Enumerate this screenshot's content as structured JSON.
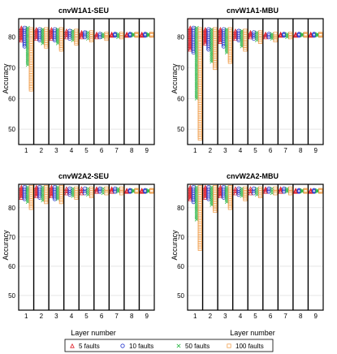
{
  "chart_data": [
    {
      "type": "scatter",
      "title": "cnvW1A1-SEU",
      "ylabel": "Accuracy",
      "xlabel": "",
      "ylim": [
        45,
        86
      ],
      "yticks": [
        50,
        60,
        70,
        80
      ],
      "categories": [
        "1",
        "2",
        "3",
        "4",
        "5",
        "6",
        "7",
        "8",
        "9"
      ],
      "series": [
        {
          "name": "5 faults",
          "ranges": [
            [
              79,
              83
            ],
            [
              79.5,
              82.5
            ],
            [
              79.5,
              82.5
            ],
            [
              80,
              82
            ],
            [
              80,
              81.5
            ],
            [
              80,
              81
            ],
            [
              80.5,
              81
            ],
            [
              80.5,
              81
            ],
            [
              80.5,
              81
            ]
          ]
        },
        {
          "name": "10 faults",
          "ranges": [
            [
              77,
              83
            ],
            [
              79,
              82.5
            ],
            [
              79,
              82.5
            ],
            [
              79.5,
              82
            ],
            [
              80,
              81.5
            ],
            [
              80,
              81
            ],
            [
              80.5,
              81
            ],
            [
              80.5,
              81
            ],
            [
              80.5,
              81
            ]
          ]
        },
        {
          "name": "50 faults",
          "ranges": [
            [
              71,
              83
            ],
            [
              78,
              82.5
            ],
            [
              78,
              82.5
            ],
            [
              79,
              82
            ],
            [
              79.5,
              81.5
            ],
            [
              80,
              81
            ],
            [
              80,
              81
            ],
            [
              80.5,
              81
            ],
            [
              80.5,
              81
            ]
          ]
        },
        {
          "name": "100 faults",
          "ranges": [
            [
              63,
              82.5
            ],
            [
              77,
              82.5
            ],
            [
              76,
              82.5
            ],
            [
              78,
              82
            ],
            [
              79,
              81.5
            ],
            [
              79.5,
              81
            ],
            [
              80,
              81
            ],
            [
              80.5,
              81
            ],
            [
              80.5,
              81
            ]
          ]
        }
      ]
    },
    {
      "type": "scatter",
      "title": "cnvW1A1-MBU",
      "ylabel": "Accuracy",
      "xlabel": "",
      "ylim": [
        45,
        86
      ],
      "yticks": [
        50,
        60,
        70,
        80
      ],
      "categories": [
        "1",
        "2",
        "3",
        "4",
        "5",
        "6",
        "7",
        "8",
        "9"
      ],
      "series": [
        {
          "name": "5 faults",
          "ranges": [
            [
              76,
              83
            ],
            [
              78,
              82.5
            ],
            [
              78.5,
              82.5
            ],
            [
              79.5,
              82
            ],
            [
              80,
              81.5
            ],
            [
              80,
              81
            ],
            [
              80.5,
              81
            ],
            [
              80.5,
              81
            ],
            [
              80.5,
              81
            ]
          ]
        },
        {
          "name": "10 faults",
          "ranges": [
            [
              75,
              83
            ],
            [
              76,
              82.5
            ],
            [
              77,
              82.5
            ],
            [
              79,
              82
            ],
            [
              79.5,
              81.5
            ],
            [
              80,
              81
            ],
            [
              80.5,
              81
            ],
            [
              80.5,
              81
            ],
            [
              80.5,
              81
            ]
          ]
        },
        {
          "name": "50 faults",
          "ranges": [
            [
              60,
              83
            ],
            [
              72,
              82.5
            ],
            [
              75,
              82.5
            ],
            [
              77,
              82
            ],
            [
              79,
              81.5
            ],
            [
              79.5,
              81
            ],
            [
              80,
              81
            ],
            [
              80.5,
              81
            ],
            [
              80.5,
              81
            ]
          ]
        },
        {
          "name": "100 faults",
          "ranges": [
            [
              47,
              82.5
            ],
            [
              70,
              82.5
            ],
            [
              72,
              82.5
            ],
            [
              76,
              82
            ],
            [
              78.5,
              81.5
            ],
            [
              79,
              81
            ],
            [
              80,
              81
            ],
            [
              80.5,
              81
            ],
            [
              80.5,
              81
            ]
          ]
        }
      ]
    },
    {
      "type": "scatter",
      "title": "cnvW2A2-SEU",
      "ylabel": "Accuracy",
      "xlabel": "Layer number",
      "ylim": [
        45,
        88
      ],
      "yticks": [
        50,
        60,
        70,
        80
      ],
      "categories": [
        "1",
        "2",
        "3",
        "4",
        "5",
        "6",
        "7",
        "8",
        "9"
      ],
      "series": [
        {
          "name": "5 faults",
          "ranges": [
            [
              83.5,
              87
            ],
            [
              84,
              87
            ],
            [
              84,
              87
            ],
            [
              85,
              86.5
            ],
            [
              85,
              86.5
            ],
            [
              85.5,
              86.5
            ],
            [
              85.5,
              86.5
            ],
            [
              85.5,
              86
            ],
            [
              85.5,
              86
            ]
          ]
        },
        {
          "name": "10 faults",
          "ranges": [
            [
              83,
              87
            ],
            [
              83.5,
              87
            ],
            [
              83,
              87
            ],
            [
              84.5,
              86.5
            ],
            [
              85,
              86.5
            ],
            [
              85.5,
              86.5
            ],
            [
              85.5,
              86.5
            ],
            [
              85.5,
              86
            ],
            [
              85.5,
              86
            ]
          ]
        },
        {
          "name": "50 faults",
          "ranges": [
            [
              82,
              87
            ],
            [
              82.5,
              87
            ],
            [
              83,
              87
            ],
            [
              84,
              86.5
            ],
            [
              84.5,
              86.5
            ],
            [
              85,
              86.5
            ],
            [
              85.5,
              86.5
            ],
            [
              85.5,
              86
            ],
            [
              85.5,
              86
            ]
          ]
        },
        {
          "name": "100 faults",
          "ranges": [
            [
              80,
              87
            ],
            [
              82,
              87
            ],
            [
              82,
              87
            ],
            [
              83.5,
              86.5
            ],
            [
              84,
              86.5
            ],
            [
              85,
              86.5
            ],
            [
              85,
              86.5
            ],
            [
              85.5,
              86
            ],
            [
              85.5,
              86
            ]
          ]
        }
      ]
    },
    {
      "type": "scatter",
      "title": "cnvW2A2-MBU",
      "ylabel": "Accuracy",
      "xlabel": "Layer number",
      "ylim": [
        45,
        88
      ],
      "yticks": [
        50,
        60,
        70,
        80
      ],
      "categories": [
        "1",
        "2",
        "3",
        "4",
        "5",
        "6",
        "7",
        "8",
        "9"
      ],
      "series": [
        {
          "name": "5 faults",
          "ranges": [
            [
              83,
              87
            ],
            [
              83.5,
              87
            ],
            [
              84,
              87
            ],
            [
              85,
              86.5
            ],
            [
              85,
              86.5
            ],
            [
              85.5,
              86.5
            ],
            [
              85.5,
              86.5
            ],
            [
              85.5,
              86
            ],
            [
              85.5,
              86
            ]
          ]
        },
        {
          "name": "10 faults",
          "ranges": [
            [
              82,
              87
            ],
            [
              83,
              87
            ],
            [
              83.5,
              87
            ],
            [
              84.5,
              86.5
            ],
            [
              85,
              86.5
            ],
            [
              85.5,
              86.5
            ],
            [
              85.5,
              86.5
            ],
            [
              85.5,
              86
            ],
            [
              85.5,
              86
            ]
          ]
        },
        {
          "name": "50 faults",
          "ranges": [
            [
              76,
              87
            ],
            [
              81,
              87
            ],
            [
              82,
              87
            ],
            [
              84,
              86.5
            ],
            [
              84.5,
              86.5
            ],
            [
              85,
              86.5
            ],
            [
              85.5,
              86.5
            ],
            [
              85.5,
              86
            ],
            [
              85.5,
              86
            ]
          ]
        },
        {
          "name": "100 faults",
          "ranges": [
            [
              66,
              87
            ],
            [
              79,
              87
            ],
            [
              80,
              87
            ],
            [
              83,
              86.5
            ],
            [
              84,
              86.5
            ],
            [
              85,
              86.5
            ],
            [
              85,
              86.5
            ],
            [
              85.5,
              86
            ],
            [
              85.5,
              86
            ]
          ]
        }
      ]
    }
  ],
  "legend": {
    "position": "bottom",
    "items": [
      {
        "label": "5 faults",
        "marker": "triangle",
        "color": "#e0202a"
      },
      {
        "label": "10 faults",
        "marker": "circle",
        "color": "#2233cc"
      },
      {
        "label": "50 faults",
        "marker": "x",
        "color": "#2fb84a"
      },
      {
        "label": "100 faults",
        "marker": "square",
        "color": "#f0a050"
      }
    ]
  },
  "grid": true
}
